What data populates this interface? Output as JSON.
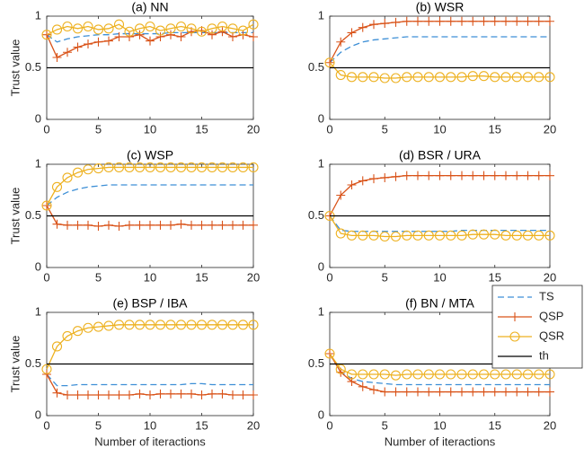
{
  "chart_data": [
    {
      "type": "line",
      "title": "(a) NN",
      "ylabel": "Trust value",
      "x": [
        0,
        1,
        2,
        3,
        4,
        5,
        6,
        7,
        8,
        9,
        10,
        11,
        12,
        13,
        14,
        15,
        16,
        17,
        18,
        19,
        20
      ],
      "xlim": [
        0,
        20
      ],
      "ylim": [
        0,
        1
      ],
      "xticks": [
        0,
        5,
        10,
        15,
        20
      ],
      "yticks": [
        0,
        0.5,
        1
      ],
      "legend": false,
      "series": [
        {
          "color": "#3d8fd6",
          "style": "dashed",
          "marker": "none",
          "values": [
            0.82,
            0.75,
            0.78,
            0.8,
            0.81,
            0.82,
            0.82,
            0.83,
            0.83,
            0.83,
            0.83,
            0.83,
            0.84,
            0.84,
            0.84,
            0.84,
            0.84,
            0.84,
            0.84,
            0.84,
            0.84
          ]
        },
        {
          "color": "#d95319",
          "style": "solid",
          "marker": "plus",
          "values": [
            0.82,
            0.6,
            0.65,
            0.7,
            0.73,
            0.75,
            0.76,
            0.8,
            0.8,
            0.82,
            0.76,
            0.8,
            0.82,
            0.8,
            0.85,
            0.86,
            0.82,
            0.85,
            0.8,
            0.82,
            0.8
          ]
        },
        {
          "color": "#edb120",
          "style": "solid",
          "marker": "circle",
          "values": [
            0.82,
            0.87,
            0.9,
            0.88,
            0.9,
            0.87,
            0.88,
            0.92,
            0.85,
            0.88,
            0.9,
            0.86,
            0.88,
            0.9,
            0.88,
            0.85,
            0.88,
            0.9,
            0.88,
            0.86,
            0.92
          ]
        },
        {
          "color": "#000000",
          "style": "solid",
          "marker": "none",
          "values": [
            0.5,
            0.5,
            0.5,
            0.5,
            0.5,
            0.5,
            0.5,
            0.5,
            0.5,
            0.5,
            0.5,
            0.5,
            0.5,
            0.5,
            0.5,
            0.5,
            0.5,
            0.5,
            0.5,
            0.5,
            0.5
          ]
        }
      ]
    },
    {
      "type": "line",
      "title": "(b) WSR",
      "x": [
        0,
        1,
        2,
        3,
        4,
        5,
        6,
        7,
        8,
        9,
        10,
        11,
        12,
        13,
        14,
        15,
        16,
        17,
        18,
        19,
        20
      ],
      "xlim": [
        0,
        20
      ],
      "ylim": [
        0,
        1
      ],
      "xticks": [
        0,
        5,
        10,
        15,
        20
      ],
      "yticks": [
        0,
        0.5,
        1
      ],
      "legend": false,
      "series": [
        {
          "color": "#3d8fd6",
          "style": "dashed",
          "marker": "none",
          "values": [
            0.55,
            0.65,
            0.71,
            0.75,
            0.77,
            0.78,
            0.79,
            0.8,
            0.8,
            0.8,
            0.8,
            0.8,
            0.8,
            0.8,
            0.8,
            0.8,
            0.8,
            0.8,
            0.8,
            0.8,
            0.8
          ]
        },
        {
          "color": "#d95319",
          "style": "solid",
          "marker": "plus",
          "values": [
            0.55,
            0.75,
            0.84,
            0.89,
            0.92,
            0.93,
            0.94,
            0.95,
            0.95,
            0.95,
            0.95,
            0.95,
            0.95,
            0.95,
            0.95,
            0.95,
            0.95,
            0.95,
            0.95,
            0.95,
            0.95
          ]
        },
        {
          "color": "#edb120",
          "style": "solid",
          "marker": "circle",
          "values": [
            0.55,
            0.43,
            0.41,
            0.41,
            0.41,
            0.4,
            0.4,
            0.41,
            0.41,
            0.41,
            0.41,
            0.41,
            0.41,
            0.42,
            0.42,
            0.41,
            0.41,
            0.41,
            0.41,
            0.41,
            0.41
          ]
        },
        {
          "color": "#000000",
          "style": "solid",
          "marker": "none",
          "values": [
            0.5,
            0.5,
            0.5,
            0.5,
            0.5,
            0.5,
            0.5,
            0.5,
            0.5,
            0.5,
            0.5,
            0.5,
            0.5,
            0.5,
            0.5,
            0.5,
            0.5,
            0.5,
            0.5,
            0.5,
            0.5
          ]
        }
      ]
    },
    {
      "type": "line",
      "title": "(c) WSP",
      "ylabel": "Trust value",
      "x": [
        0,
        1,
        2,
        3,
        4,
        5,
        6,
        7,
        8,
        9,
        10,
        11,
        12,
        13,
        14,
        15,
        16,
        17,
        18,
        19,
        20
      ],
      "xlim": [
        0,
        20
      ],
      "ylim": [
        0,
        1
      ],
      "xticks": [
        0,
        5,
        10,
        15,
        20
      ],
      "yticks": [
        0,
        0.5,
        1
      ],
      "legend": false,
      "series": [
        {
          "color": "#3d8fd6",
          "style": "dashed",
          "marker": "none",
          "values": [
            0.6,
            0.68,
            0.73,
            0.76,
            0.78,
            0.79,
            0.8,
            0.8,
            0.8,
            0.8,
            0.8,
            0.8,
            0.8,
            0.8,
            0.8,
            0.8,
            0.8,
            0.8,
            0.8,
            0.8,
            0.8
          ]
        },
        {
          "color": "#d95319",
          "style": "solid",
          "marker": "plus",
          "values": [
            0.6,
            0.42,
            0.41,
            0.41,
            0.41,
            0.4,
            0.41,
            0.4,
            0.41,
            0.41,
            0.41,
            0.41,
            0.41,
            0.42,
            0.41,
            0.41,
            0.41,
            0.41,
            0.41,
            0.41,
            0.41
          ]
        },
        {
          "color": "#edb120",
          "style": "solid",
          "marker": "circle",
          "values": [
            0.6,
            0.78,
            0.87,
            0.92,
            0.95,
            0.96,
            0.97,
            0.97,
            0.97,
            0.97,
            0.97,
            0.97,
            0.97,
            0.97,
            0.97,
            0.97,
            0.97,
            0.97,
            0.97,
            0.97,
            0.97
          ]
        },
        {
          "color": "#000000",
          "style": "solid",
          "marker": "none",
          "values": [
            0.5,
            0.5,
            0.5,
            0.5,
            0.5,
            0.5,
            0.5,
            0.5,
            0.5,
            0.5,
            0.5,
            0.5,
            0.5,
            0.5,
            0.5,
            0.5,
            0.5,
            0.5,
            0.5,
            0.5,
            0.5
          ]
        }
      ]
    },
    {
      "type": "line",
      "title": "(d) BSR / URA",
      "x": [
        0,
        1,
        2,
        3,
        4,
        5,
        6,
        7,
        8,
        9,
        10,
        11,
        12,
        13,
        14,
        15,
        16,
        17,
        18,
        19,
        20
      ],
      "xlim": [
        0,
        20
      ],
      "ylim": [
        0,
        1
      ],
      "xticks": [
        0,
        5,
        10,
        15,
        20
      ],
      "yticks": [
        0,
        0.5,
        1
      ],
      "legend": false,
      "series": [
        {
          "color": "#3d8fd6",
          "style": "dashed",
          "marker": "none",
          "values": [
            0.5,
            0.36,
            0.35,
            0.35,
            0.35,
            0.35,
            0.35,
            0.35,
            0.35,
            0.35,
            0.35,
            0.35,
            0.36,
            0.36,
            0.36,
            0.36,
            0.36,
            0.36,
            0.36,
            0.36,
            0.36
          ]
        },
        {
          "color": "#d95319",
          "style": "solid",
          "marker": "plus",
          "values": [
            0.5,
            0.7,
            0.8,
            0.84,
            0.86,
            0.87,
            0.88,
            0.89,
            0.89,
            0.89,
            0.89,
            0.89,
            0.89,
            0.89,
            0.89,
            0.89,
            0.89,
            0.89,
            0.89,
            0.89,
            0.89
          ]
        },
        {
          "color": "#edb120",
          "style": "solid",
          "marker": "circle",
          "values": [
            0.5,
            0.33,
            0.31,
            0.31,
            0.31,
            0.3,
            0.3,
            0.31,
            0.31,
            0.31,
            0.31,
            0.31,
            0.31,
            0.32,
            0.32,
            0.32,
            0.31,
            0.31,
            0.31,
            0.31,
            0.31
          ]
        },
        {
          "color": "#000000",
          "style": "solid",
          "marker": "none",
          "values": [
            0.5,
            0.5,
            0.5,
            0.5,
            0.5,
            0.5,
            0.5,
            0.5,
            0.5,
            0.5,
            0.5,
            0.5,
            0.5,
            0.5,
            0.5,
            0.5,
            0.5,
            0.5,
            0.5,
            0.5,
            0.5
          ]
        }
      ]
    },
    {
      "type": "line",
      "title": "(e) BSP / IBA",
      "ylabel": "Trust value",
      "xlabel": "Number of iteractions",
      "x": [
        0,
        1,
        2,
        3,
        4,
        5,
        6,
        7,
        8,
        9,
        10,
        11,
        12,
        13,
        14,
        15,
        16,
        17,
        18,
        19,
        20
      ],
      "xlim": [
        0,
        20
      ],
      "ylim": [
        0,
        1
      ],
      "xticks": [
        0,
        5,
        10,
        15,
        20
      ],
      "yticks": [
        0,
        0.5,
        1
      ],
      "legend": false,
      "series": [
        {
          "color": "#3d8fd6",
          "style": "dashed",
          "marker": "none",
          "values": [
            0.4,
            0.29,
            0.29,
            0.3,
            0.3,
            0.3,
            0.3,
            0.3,
            0.3,
            0.3,
            0.3,
            0.3,
            0.3,
            0.3,
            0.31,
            0.31,
            0.3,
            0.3,
            0.3,
            0.3,
            0.3
          ]
        },
        {
          "color": "#d95319",
          "style": "solid",
          "marker": "plus",
          "values": [
            0.4,
            0.22,
            0.2,
            0.2,
            0.2,
            0.2,
            0.2,
            0.2,
            0.2,
            0.21,
            0.2,
            0.21,
            0.21,
            0.21,
            0.21,
            0.2,
            0.21,
            0.21,
            0.2,
            0.2,
            0.2
          ]
        },
        {
          "color": "#edb120",
          "style": "solid",
          "marker": "circle",
          "values": [
            0.45,
            0.67,
            0.77,
            0.82,
            0.85,
            0.86,
            0.87,
            0.88,
            0.88,
            0.88,
            0.88,
            0.88,
            0.88,
            0.88,
            0.88,
            0.88,
            0.88,
            0.88,
            0.88,
            0.88,
            0.88
          ]
        },
        {
          "color": "#000000",
          "style": "solid",
          "marker": "none",
          "values": [
            0.5,
            0.5,
            0.5,
            0.5,
            0.5,
            0.5,
            0.5,
            0.5,
            0.5,
            0.5,
            0.5,
            0.5,
            0.5,
            0.5,
            0.5,
            0.5,
            0.5,
            0.5,
            0.5,
            0.5,
            0.5
          ]
        }
      ]
    },
    {
      "type": "line",
      "title": "(f) BN / MTA",
      "xlabel": "Number of iteractions",
      "x": [
        0,
        1,
        2,
        3,
        4,
        5,
        6,
        7,
        8,
        9,
        10,
        11,
        12,
        13,
        14,
        15,
        16,
        17,
        18,
        19,
        20
      ],
      "xlim": [
        0,
        20
      ],
      "ylim": [
        0,
        1
      ],
      "xticks": [
        0,
        5,
        10,
        15,
        20
      ],
      "yticks": [
        0,
        0.5,
        1
      ],
      "legend": true,
      "series": [
        {
          "name": "TS",
          "color": "#3d8fd6",
          "style": "dashed",
          "marker": "none",
          "values": [
            0.6,
            0.42,
            0.36,
            0.33,
            0.32,
            0.31,
            0.3,
            0.3,
            0.3,
            0.3,
            0.3,
            0.3,
            0.3,
            0.3,
            0.3,
            0.3,
            0.3,
            0.3,
            0.3,
            0.3,
            0.3
          ]
        },
        {
          "name": "QSP",
          "color": "#d95319",
          "style": "solid",
          "marker": "plus",
          "values": [
            0.6,
            0.42,
            0.33,
            0.28,
            0.25,
            0.23,
            0.23,
            0.23,
            0.23,
            0.23,
            0.23,
            0.23,
            0.23,
            0.23,
            0.23,
            0.23,
            0.23,
            0.23,
            0.23,
            0.23,
            0.23
          ]
        },
        {
          "name": "QSR",
          "color": "#edb120",
          "style": "solid",
          "marker": "circle",
          "values": [
            0.6,
            0.45,
            0.4,
            0.4,
            0.4,
            0.4,
            0.39,
            0.4,
            0.4,
            0.4,
            0.4,
            0.4,
            0.4,
            0.4,
            0.4,
            0.4,
            0.4,
            0.4,
            0.4,
            0.4,
            0.4
          ]
        },
        {
          "name": "th",
          "color": "#000000",
          "style": "solid",
          "marker": "none",
          "values": [
            0.5,
            0.5,
            0.5,
            0.5,
            0.5,
            0.5,
            0.5,
            0.5,
            0.5,
            0.5,
            0.5,
            0.5,
            0.5,
            0.5,
            0.5,
            0.5,
            0.5,
            0.5,
            0.5,
            0.5,
            0.5
          ]
        }
      ]
    }
  ]
}
